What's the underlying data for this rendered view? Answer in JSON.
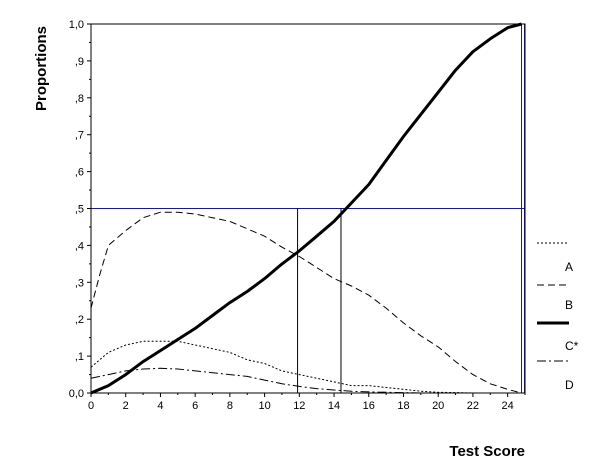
{
  "chart_data": {
    "type": "line",
    "title": "",
    "xlabel": "Test Score",
    "ylabel": "Proportions",
    "xlim": [
      0,
      25
    ],
    "ylim": [
      0,
      1
    ],
    "x_ticks": [
      0,
      2,
      4,
      6,
      8,
      10,
      12,
      14,
      16,
      18,
      20,
      22,
      24
    ],
    "x_tick_labels": [
      "0",
      "2",
      "4",
      "6",
      "8",
      "10",
      "12",
      "14",
      "16",
      "18",
      "20",
      "22",
      "24"
    ],
    "y_ticks": [
      0,
      0.1,
      0.2,
      0.3,
      0.4,
      0.5,
      0.6,
      0.7,
      0.8,
      0.9,
      1.0
    ],
    "y_tick_labels": [
      "0,0",
      ",1",
      ",2",
      ",3",
      ",4",
      ",5",
      ",6",
      ",7",
      ",8",
      ",9",
      "1,0"
    ],
    "grid": false,
    "legend_position": "right",
    "reference_lines": {
      "horizontal_y": 0.5,
      "vertical_x": [
        11.9,
        14.4,
        24.8
      ]
    },
    "series": [
      {
        "name": "A",
        "style": "dotted",
        "color": "#000000",
        "x": [
          0,
          1,
          2,
          3,
          4,
          5,
          6,
          7,
          8,
          9,
          10,
          11,
          12,
          13,
          14,
          15,
          16,
          17,
          18,
          19,
          20,
          21,
          22,
          23,
          24,
          25
        ],
        "y": [
          0.07,
          0.11,
          0.13,
          0.14,
          0.14,
          0.14,
          0.13,
          0.12,
          0.11,
          0.09,
          0.08,
          0.06,
          0.05,
          0.04,
          0.03,
          0.02,
          0.02,
          0.015,
          0.01,
          0.005,
          0.002,
          0.001,
          0,
          0,
          0,
          0
        ]
      },
      {
        "name": "B",
        "style": "dashed",
        "color": "#000000",
        "x": [
          0,
          0.5,
          1,
          2,
          3,
          4,
          5,
          6,
          7,
          8,
          9,
          10,
          11,
          12,
          13,
          14,
          15,
          16,
          17,
          18,
          19,
          20,
          21,
          22,
          23,
          24,
          24.8
        ],
        "y": [
          0.23,
          0.32,
          0.4,
          0.44,
          0.475,
          0.49,
          0.49,
          0.485,
          0.475,
          0.465,
          0.445,
          0.425,
          0.395,
          0.37,
          0.34,
          0.31,
          0.29,
          0.265,
          0.23,
          0.19,
          0.155,
          0.125,
          0.085,
          0.05,
          0.025,
          0.01,
          0
        ]
      },
      {
        "name": "C*",
        "style": "thick-solid",
        "color": "#000000",
        "x": [
          0,
          1,
          2,
          3,
          4,
          5,
          6,
          7,
          8,
          9,
          10,
          11,
          12,
          13,
          14,
          15,
          16,
          17,
          18,
          19,
          20,
          21,
          22,
          23,
          24,
          24.8
        ],
        "y": [
          0,
          0.02,
          0.05,
          0.085,
          0.115,
          0.145,
          0.175,
          0.21,
          0.245,
          0.275,
          0.31,
          0.35,
          0.385,
          0.425,
          0.465,
          0.515,
          0.565,
          0.63,
          0.695,
          0.755,
          0.815,
          0.875,
          0.925,
          0.96,
          0.99,
          1.0
        ]
      },
      {
        "name": "D",
        "style": "dash-dot",
        "color": "#000000",
        "x": [
          0,
          1,
          2,
          3,
          4,
          5,
          6,
          7,
          8,
          9,
          10,
          11,
          12,
          13,
          14,
          15,
          16,
          17,
          18,
          19,
          20,
          21,
          22,
          23,
          24,
          25
        ],
        "y": [
          0.04,
          0.05,
          0.06,
          0.065,
          0.067,
          0.065,
          0.06,
          0.055,
          0.05,
          0.045,
          0.035,
          0.025,
          0.018,
          0.012,
          0.008,
          0.005,
          0.003,
          0.002,
          0.001,
          0,
          0,
          0,
          0,
          0,
          0,
          0
        ]
      }
    ]
  }
}
